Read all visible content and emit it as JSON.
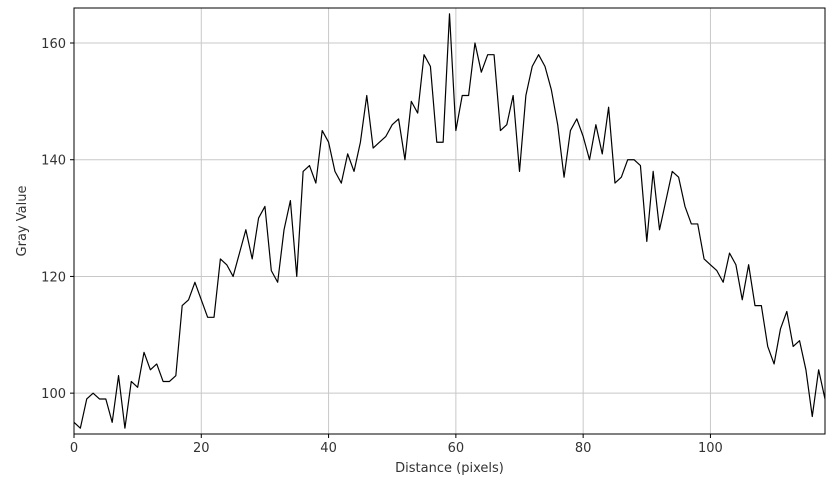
{
  "colors": {
    "line": "#000000",
    "grid": "#c8c8c8",
    "frame": "#000000",
    "background": "#ffffff"
  },
  "chart_data": {
    "type": "line",
    "title": "",
    "xlabel": "Distance (pixels)",
    "ylabel": "Gray Value",
    "xlim": [
      0,
      118
    ],
    "ylim": [
      93,
      166
    ],
    "grid": true,
    "legend": "none",
    "x_ticks": [
      0,
      20,
      40,
      60,
      80,
      100
    ],
    "y_ticks": [
      100,
      120,
      140,
      160
    ],
    "series": [
      {
        "x": [
          0,
          1,
          2,
          3,
          4,
          5,
          6,
          7,
          8,
          9,
          10,
          11,
          12,
          13,
          14,
          15,
          16,
          17,
          18,
          19,
          20,
          21,
          22,
          23,
          24,
          25,
          26,
          27,
          28,
          29,
          30,
          31,
          32,
          33,
          34,
          35,
          36,
          37,
          38,
          39,
          40,
          41,
          42,
          43,
          44,
          45,
          46,
          47,
          48,
          49,
          50,
          51,
          52,
          53,
          54,
          55,
          56,
          57,
          58,
          59,
          60,
          61,
          62,
          63,
          64,
          65,
          66,
          67,
          68,
          69,
          70,
          71,
          72,
          73,
          74,
          75,
          76,
          77,
          78,
          79,
          80,
          81,
          82,
          83,
          84,
          85,
          86,
          87,
          88,
          89,
          90,
          91,
          92,
          93,
          94,
          95,
          96,
          97,
          98,
          99,
          100,
          101,
          102,
          103,
          104,
          105,
          106,
          107,
          108,
          109,
          110,
          111,
          112,
          113,
          114,
          115,
          116,
          117,
          118
        ],
        "y": [
          95,
          94,
          99,
          100,
          99,
          99,
          95,
          103,
          94,
          102,
          101,
          107,
          104,
          105,
          102,
          102,
          103,
          115,
          116,
          119,
          116,
          113,
          113,
          123,
          122,
          120,
          124,
          128,
          123,
          130,
          132,
          121,
          119,
          128,
          133,
          120,
          138,
          139,
          136,
          145,
          143,
          138,
          136,
          141,
          138,
          143,
          151,
          142,
          143,
          144,
          146,
          147,
          140,
          150,
          148,
          158,
          156,
          143,
          143,
          165,
          145,
          151,
          151,
          160,
          155,
          158,
          158,
          145,
          146,
          151,
          138,
          151,
          156,
          158,
          156,
          152,
          146,
          137,
          145,
          147,
          144,
          140,
          146,
          141,
          149,
          136,
          137,
          140,
          140,
          139,
          126,
          138,
          128,
          133,
          138,
          137,
          132,
          129,
          129,
          123,
          122,
          121,
          119,
          124,
          122,
          116,
          122,
          115,
          115,
          108,
          105,
          111,
          114,
          108,
          109,
          104,
          96,
          104,
          99
        ]
      }
    ]
  }
}
